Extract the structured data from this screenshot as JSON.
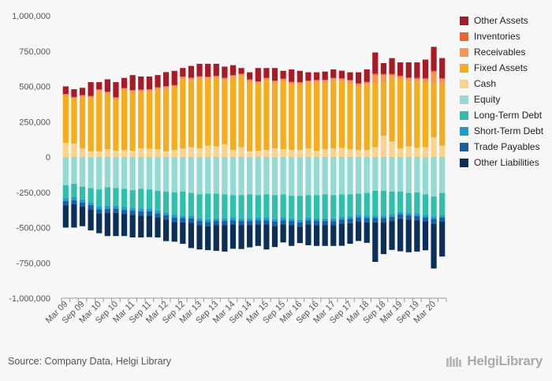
{
  "source": "Source: Company Data, Helgi Library",
  "brand": "HelgiLibrary",
  "chart_data": {
    "type": "bar",
    "stacked": true,
    "xlabel": "",
    "ylabel": "",
    "ylim": [
      -1000000,
      1000000
    ],
    "yticks": [
      1000000,
      750000,
      500000,
      250000,
      0,
      -250000,
      -500000,
      -750000,
      -1000000
    ],
    "ytick_labels": [
      "1,000,000",
      "750,000",
      "500,000",
      "250,000",
      "0",
      "-250,000",
      "-500,000",
      "-750,000",
      "-1,000,000"
    ],
    "xtick_labels": [
      "Mar 09",
      "Sep 09",
      "Mar 10",
      "Sep 10",
      "Mar 11",
      "Sep 11",
      "Mar 12",
      "Sep 12",
      "Mar 13",
      "Sep 13",
      "Mar 14",
      "Sep 14",
      "Mar 15",
      "Sep 15",
      "Mar 16",
      "Sep 16",
      "Mar 17",
      "Sep 17",
      "Mar 18",
      "Sep 18",
      "Mar 19",
      "Sep 19",
      "Mar 20"
    ],
    "categories": [
      "Mar 09",
      "Jun 09",
      "Sep 09",
      "Dec 09",
      "Mar 10",
      "Jun 10",
      "Sep 10",
      "Dec 10",
      "Mar 11",
      "Jun 11",
      "Sep 11",
      "Dec 11",
      "Mar 12",
      "Jun 12",
      "Sep 12",
      "Dec 12",
      "Mar 13",
      "Jun 13",
      "Sep 13",
      "Dec 13",
      "Mar 14",
      "Jun 14",
      "Sep 14",
      "Dec 14",
      "Mar 15",
      "Jun 15",
      "Sep 15",
      "Dec 15",
      "Mar 16",
      "Jun 16",
      "Sep 16",
      "Dec 16",
      "Mar 17",
      "Jun 17",
      "Sep 17",
      "Dec 17",
      "Mar 18",
      "Jun 18",
      "Sep 18",
      "Dec 18",
      "Mar 19",
      "Jun 19",
      "Sep 19",
      "Dec 19",
      "Mar 20",
      "Jun 20"
    ],
    "grid": false,
    "legend_position": "right",
    "asset_series": [
      {
        "name": "Cash",
        "color": "#fdd28a",
        "values": [
          100000,
          95000,
          60000,
          40000,
          40000,
          55000,
          45000,
          50000,
          45000,
          60000,
          58000,
          55000,
          40000,
          50000,
          60000,
          70000,
          60000,
          80000,
          75000,
          90000,
          50000,
          70000,
          40000,
          45000,
          50000,
          60000,
          55000,
          50000,
          50000,
          60000,
          45000,
          55000,
          60000,
          65000,
          55000,
          50000,
          50000,
          70000,
          150000,
          110000,
          60000,
          75000,
          65000,
          70000,
          140000,
          80000
        ]
      },
      {
        "name": "Fixed Assets",
        "color": "#f5ad1c",
        "values": [
          330000,
          315000,
          360000,
          375000,
          420000,
          390000,
          360000,
          420000,
          410000,
          400000,
          405000,
          420000,
          440000,
          440000,
          490000,
          470000,
          490000,
          470000,
          480000,
          450000,
          510000,
          500000,
          490000,
          470000,
          490000,
          460000,
          480000,
          460000,
          460000,
          460000,
          480000,
          470000,
          480000,
          470000,
          470000,
          450000,
          460000,
          450000,
          380000,
          450000,
          490000,
          460000,
          470000,
          460000,
          380000,
          440000
        ]
      },
      {
        "name": "Receivables",
        "color": "#f7974d",
        "values": [
          12000,
          10000,
          14000,
          12000,
          14000,
          12000,
          12000,
          14000,
          14000,
          12000,
          12000,
          14000,
          16000,
          14000,
          15000,
          16000,
          16000,
          14000,
          15000,
          16000,
          15000,
          14000,
          15000,
          16000,
          15000,
          16000,
          15000,
          16000,
          15000,
          16000,
          15000,
          16000,
          15000,
          16000,
          15000,
          16000,
          16000,
          60000,
          50000,
          20000,
          18000,
          20000,
          18000,
          20000,
          80000,
          30000
        ]
      },
      {
        "name": "Inventories",
        "color": "#f0642c",
        "values": [
          5000,
          5000,
          5000,
          6000,
          5000,
          5000,
          6000,
          5000,
          5000,
          6000,
          5000,
          5000,
          6000,
          5000,
          5000,
          6000,
          5000,
          5000,
          6000,
          5000,
          5000,
          6000,
          5000,
          5000,
          6000,
          5000,
          5000,
          6000,
          5000,
          5000,
          6000,
          5000,
          5000,
          6000,
          5000,
          5000,
          6000,
          10000,
          8000,
          8000,
          8000,
          8000,
          8000,
          8000,
          10000,
          8000
        ]
      },
      {
        "name": "Other Assets",
        "color": "#a71a26",
        "values": [
          53000,
          55000,
          51000,
          97000,
          51000,
          88000,
          107000,
          71000,
          106000,
          92000,
          90000,
          86000,
          99000,
          101000,
          60000,
          83000,
          89000,
          91000,
          84000,
          79000,
          70000,
          40000,
          50000,
          94000,
          69000,
          89000,
          55000,
          88000,
          80000,
          59000,
          54000,
          59000,
          60000,
          54000,
          55000,
          79000,
          88000,
          150000,
          77000,
          112000,
          94000,
          107000,
          109000,
          132000,
          170000,
          142000
        ]
      }
    ],
    "liability_series": [
      {
        "name": "Equity",
        "color": "#92dad2",
        "values": [
          -200000,
          -190000,
          -210000,
          -220000,
          -230000,
          -215000,
          -220000,
          -225000,
          -235000,
          -225000,
          -230000,
          -240000,
          -245000,
          -250000,
          -245000,
          -255000,
          -265000,
          -260000,
          -260000,
          -265000,
          -270000,
          -270000,
          -265000,
          -270000,
          -265000,
          -270000,
          -265000,
          -275000,
          -275000,
          -270000,
          -270000,
          -265000,
          -270000,
          -265000,
          -265000,
          -260000,
          -255000,
          -240000,
          -240000,
          -245000,
          -245000,
          -255000,
          -250000,
          -265000,
          -280000,
          -255000
        ]
      },
      {
        "name": "Long-Term Debt",
        "color": "#2fbfad",
        "values": [
          -90000,
          -95000,
          -90000,
          -100000,
          -120000,
          -130000,
          -125000,
          -130000,
          -125000,
          -140000,
          -135000,
          -140000,
          -150000,
          -160000,
          -170000,
          -160000,
          -170000,
          -180000,
          -175000,
          -170000,
          -160000,
          -165000,
          -170000,
          -160000,
          -165000,
          -170000,
          -165000,
          -160000,
          -170000,
          -160000,
          -165000,
          -170000,
          -165000,
          -160000,
          -155000,
          -150000,
          -160000,
          -175000,
          -175000,
          -160000,
          -145000,
          -140000,
          -150000,
          -145000,
          -140000,
          -155000
        ]
      },
      {
        "name": "Short-Term Debt",
        "color": "#1a9dd1",
        "values": [
          -22000,
          -22000,
          -22000,
          -20000,
          -20000,
          -22000,
          -20000,
          -20000,
          -20000,
          -20000,
          -20000,
          -20000,
          -18000,
          -20000,
          -18000,
          -20000,
          -18000,
          -20000,
          -18000,
          -18000,
          -18000,
          -18000,
          -18000,
          -18000,
          -18000,
          -18000,
          -18000,
          -18000,
          -18000,
          -18000,
          -18000,
          -18000,
          -18000,
          -18000,
          -18000,
          -18000,
          -18000,
          -18000,
          -18000,
          -18000,
          -18000,
          -18000,
          -18000,
          -18000,
          -18000,
          -18000
        ]
      },
      {
        "name": "Trade Payables",
        "color": "#155ea8",
        "values": [
          -30000,
          -28000,
          -30000,
          -30000,
          -30000,
          -30000,
          -30000,
          -30000,
          -30000,
          -30000,
          -30000,
          -30000,
          -30000,
          -30000,
          -30000,
          -30000,
          -30000,
          -30000,
          -30000,
          -30000,
          -30000,
          -30000,
          -30000,
          -30000,
          -30000,
          -30000,
          -30000,
          -30000,
          -30000,
          -30000,
          -30000,
          -30000,
          -30000,
          -30000,
          -30000,
          -30000,
          -30000,
          -30000,
          -30000,
          -30000,
          -30000,
          -30000,
          -30000,
          -30000,
          -35000,
          -30000
        ]
      },
      {
        "name": "Other Liabilities",
        "color": "#0c2f5a",
        "values": [
          -158000,
          -165000,
          -138000,
          -150000,
          -140000,
          -163000,
          -165000,
          -155000,
          -160000,
          -155000,
          -153000,
          -140000,
          -153000,
          -140000,
          -152000,
          -180000,
          -172000,
          -170000,
          -182000,
          -187000,
          -172000,
          -169000,
          -157000,
          -152000,
          -177000,
          -150000,
          -127000,
          -147000,
          -117000,
          -147000,
          -147000,
          -147000,
          -147000,
          -156000,
          -147000,
          -137000,
          -145000,
          -280000,
          -225000,
          -205000,
          -230000,
          -232000,
          -222000,
          -203000,
          -317000,
          -247000
        ]
      }
    ],
    "legend_order": [
      "Other Assets",
      "Inventories",
      "Receivables",
      "Fixed Assets",
      "Cash",
      "Equity",
      "Long-Term Debt",
      "Short-Term Debt",
      "Trade Payables",
      "Other Liabilities"
    ],
    "legend_colors": {
      "Other Assets": "#a71a26",
      "Inventories": "#f0642c",
      "Receivables": "#f7974d",
      "Fixed Assets": "#f5ad1c",
      "Cash": "#fdd28a",
      "Equity": "#92dad2",
      "Long-Term Debt": "#2fbfad",
      "Short-Term Debt": "#1a9dd1",
      "Trade Payables": "#155ea8",
      "Other Liabilities": "#0c2f5a"
    }
  }
}
